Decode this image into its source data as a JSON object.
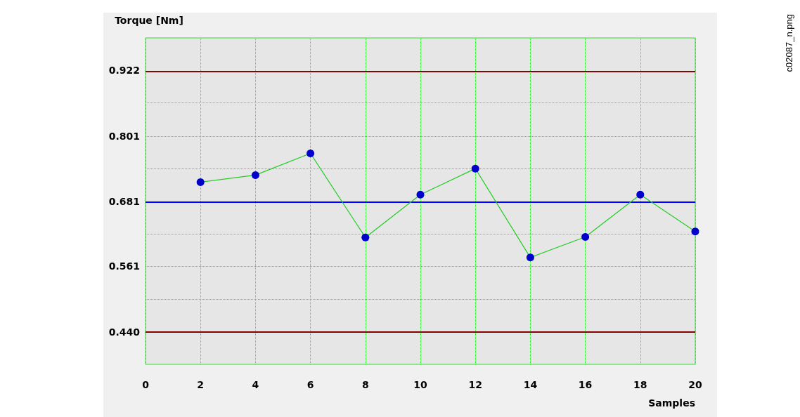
{
  "chart_data": {
    "type": "line",
    "ylabel": "Torque [Nm]",
    "xlabel": "Samples",
    "x": [
      2,
      4,
      6,
      8,
      10,
      12,
      14,
      16,
      18,
      20
    ],
    "series": [
      {
        "color": "#0000cc",
        "values": [
          0.716,
          0.729,
          0.769,
          0.614,
          0.693,
          0.741,
          0.577,
          0.615,
          0.693,
          0.625
        ]
      }
    ],
    "xlim": [
      0,
      20
    ],
    "xticks": [
      0,
      2,
      4,
      6,
      8,
      10,
      12,
      14,
      16,
      18,
      20
    ],
    "ylim": [
      0.38,
      0.982
    ],
    "yticks": [
      {
        "value": 0.44,
        "label": "0.440"
      },
      {
        "value": 0.5,
        "label": null
      },
      0.561,
      {
        "value": 0.621,
        "label": null
      },
      0.681,
      {
        "value": 0.741,
        "label": null
      },
      0.801,
      {
        "value": 0.862,
        "label": null
      },
      0.922
    ],
    "ref_lines": [
      {
        "axis": "y",
        "value": 0.922,
        "color": "#7a0a0a"
      },
      {
        "axis": "y",
        "value": 0.681,
        "color": "#0000ff"
      },
      {
        "axis": "y",
        "value": 0.44,
        "color": "#800000"
      }
    ],
    "grid": true,
    "marker": "circle",
    "line_style": "solid",
    "annotations": [
      "c02087_n.png"
    ]
  }
}
